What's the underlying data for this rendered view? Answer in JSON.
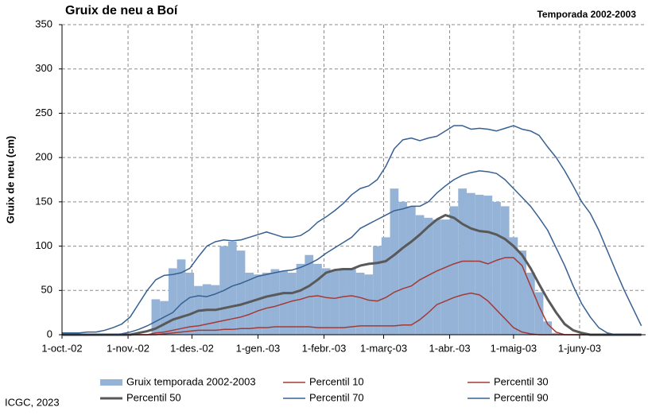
{
  "chart_data": {
    "type": "combo",
    "title": "Gruix de neu a Boí",
    "subtitle": "Temporada 2002-2003",
    "y_label": "Gruix de neu (cm)",
    "source": "ICGC, 2023",
    "grid": true,
    "xlim": [
      0,
      274
    ],
    "xticks": [
      {
        "value": 0,
        "label": "1-oct.-02"
      },
      {
        "value": 31,
        "label": "1-nov.-02"
      },
      {
        "value": 61,
        "label": "1-des.-02"
      },
      {
        "value": 92,
        "label": "1-gen.-03"
      },
      {
        "value": 123,
        "label": "1-febr.-03"
      },
      {
        "value": 151,
        "label": "1-març-03"
      },
      {
        "value": 182,
        "label": "1-abr.-03"
      },
      {
        "value": 212,
        "label": "1-maig-03"
      },
      {
        "value": 243,
        "label": "1-juny-03"
      }
    ],
    "ylim": [
      0,
      350
    ],
    "yticks": [
      0,
      50,
      100,
      150,
      200,
      250,
      300,
      350
    ],
    "x": [
      0,
      4,
      8,
      12,
      16,
      20,
      24,
      28,
      32,
      36,
      40,
      44,
      48,
      52,
      56,
      60,
      64,
      68,
      72,
      76,
      80,
      84,
      88,
      92,
      96,
      100,
      104,
      108,
      112,
      116,
      120,
      124,
      128,
      132,
      136,
      140,
      144,
      148,
      152,
      156,
      160,
      164,
      168,
      172,
      176,
      180,
      184,
      188,
      192,
      196,
      200,
      204,
      208,
      212,
      216,
      220,
      224,
      228,
      232,
      236,
      240,
      244,
      248,
      252,
      256,
      260,
      264,
      268,
      272
    ],
    "series": [
      {
        "name": "Gruix temporada 2002-2003",
        "type": "bar",
        "color": "#95b3d7",
        "values": [
          0,
          0,
          0,
          0,
          0,
          0,
          0,
          0,
          0,
          0,
          0,
          40,
          38,
          75,
          85,
          70,
          55,
          57,
          56,
          100,
          105,
          95,
          70,
          68,
          70,
          74,
          72,
          70,
          80,
          90,
          80,
          75,
          72,
          75,
          75,
          70,
          68,
          100,
          110,
          165,
          150,
          145,
          135,
          132,
          130,
          130,
          145,
          165,
          160,
          158,
          157,
          150,
          145,
          110,
          95,
          70,
          48,
          15,
          2,
          0,
          0,
          0,
          0,
          0,
          0,
          0,
          0,
          0,
          0
        ]
      },
      {
        "name": "Percentil 10",
        "type": "line",
        "color": "#a33a36",
        "line_width": 1.5,
        "values": [
          0,
          0,
          0,
          0,
          0,
          0,
          0,
          0,
          0,
          0,
          0,
          0,
          1,
          2,
          3,
          4,
          5,
          5,
          5,
          6,
          6,
          7,
          7,
          8,
          8,
          9,
          9,
          9,
          9,
          9,
          8,
          8,
          8,
          8,
          9,
          10,
          10,
          10,
          10,
          10,
          11,
          11,
          17,
          25,
          34,
          38,
          42,
          45,
          47,
          45,
          38,
          28,
          18,
          8,
          3,
          1,
          0,
          0,
          0,
          0,
          0,
          0,
          0,
          0,
          0,
          0,
          0,
          0,
          0
        ]
      },
      {
        "name": "Percentil 30",
        "type": "line",
        "color": "#a33a36",
        "line_width": 1.5,
        "values": [
          0,
          0,
          0,
          0,
          0,
          0,
          0,
          0,
          0,
          0,
          0,
          2,
          3,
          5,
          7,
          9,
          10,
          12,
          14,
          16,
          18,
          20,
          23,
          27,
          30,
          32,
          35,
          38,
          40,
          43,
          44,
          42,
          41,
          43,
          44,
          42,
          39,
          38,
          42,
          48,
          52,
          55,
          62,
          67,
          72,
          76,
          80,
          83,
          83,
          83,
          80,
          84,
          87,
          87,
          78,
          55,
          32,
          12,
          3,
          0,
          0,
          0,
          0,
          0,
          0,
          0,
          0,
          0,
          0
        ]
      },
      {
        "name": "Percentil 50",
        "type": "line",
        "color": "#595959",
        "line_width": 3,
        "values": [
          0,
          0,
          0,
          0,
          0,
          0,
          0,
          0,
          0,
          2,
          4,
          7,
          12,
          17,
          20,
          23,
          27,
          28,
          28,
          30,
          32,
          34,
          37,
          40,
          43,
          45,
          47,
          47,
          50,
          55,
          62,
          70,
          73,
          74,
          74,
          78,
          80,
          81,
          83,
          90,
          98,
          105,
          113,
          122,
          130,
          135,
          132,
          125,
          120,
          117,
          116,
          113,
          108,
          100,
          90,
          75,
          57,
          40,
          25,
          12,
          5,
          2,
          0,
          0,
          0,
          0,
          0,
          0,
          0
        ]
      },
      {
        "name": "Percentil 70",
        "type": "line",
        "color": "#366092",
        "line_width": 1.5,
        "values": [
          0,
          0,
          0,
          0,
          0,
          0,
          0,
          1,
          3,
          6,
          10,
          15,
          20,
          25,
          35,
          42,
          44,
          43,
          46,
          50,
          55,
          58,
          62,
          66,
          68,
          70,
          72,
          73,
          76,
          80,
          85,
          92,
          98,
          104,
          110,
          120,
          125,
          130,
          135,
          140,
          142,
          145,
          145,
          150,
          160,
          168,
          175,
          180,
          183,
          185,
          184,
          182,
          175,
          165,
          155,
          145,
          132,
          118,
          98,
          78,
          55,
          35,
          20,
          8,
          2,
          0,
          0,
          0,
          0
        ]
      },
      {
        "name": "Percentil 90",
        "type": "line",
        "color": "#366092",
        "line_width": 1.5,
        "values": [
          2,
          2,
          2,
          3,
          3,
          5,
          8,
          12,
          20,
          35,
          50,
          62,
          67,
          68,
          70,
          75,
          88,
          100,
          105,
          107,
          106,
          107,
          110,
          113,
          116,
          113,
          110,
          110,
          112,
          118,
          127,
          133,
          140,
          148,
          158,
          165,
          168,
          175,
          190,
          210,
          220,
          222,
          219,
          222,
          224,
          230,
          236,
          236,
          232,
          233,
          232,
          230,
          233,
          236,
          232,
          230,
          225,
          212,
          200,
          185,
          168,
          150,
          137,
          118,
          95,
          72,
          50,
          30,
          10
        ]
      }
    ]
  }
}
